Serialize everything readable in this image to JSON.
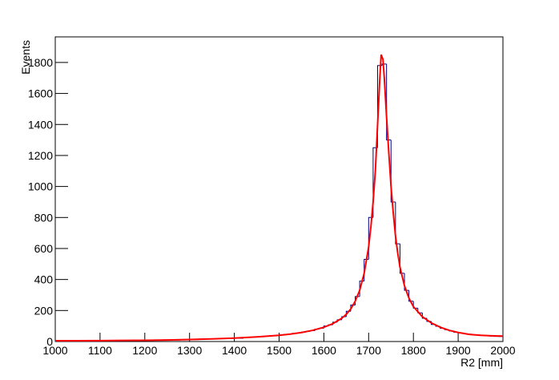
{
  "chart_data": {
    "type": "histogram",
    "xlabel": "R2 [mm]",
    "ylabel": "Events",
    "bins": [
      1000,
      1010,
      1020,
      1030,
      1040,
      1050,
      1060,
      1070,
      1080,
      1090,
      1100,
      1110,
      1120,
      1130,
      1140,
      1150,
      1160,
      1170,
      1180,
      1190,
      1200,
      1210,
      1220,
      1230,
      1240,
      1250,
      1260,
      1270,
      1280,
      1290,
      1300,
      1310,
      1320,
      1330,
      1340,
      1350,
      1360,
      1370,
      1380,
      1390,
      1400,
      1410,
      1420,
      1430,
      1440,
      1450,
      1460,
      1470,
      1480,
      1490,
      1500,
      1510,
      1520,
      1530,
      1540,
      1550,
      1560,
      1570,
      1580,
      1590,
      1600,
      1610,
      1620,
      1630,
      1640,
      1650,
      1660,
      1670,
      1680,
      1690,
      1700,
      1710,
      1720,
      1730,
      1740,
      1750,
      1760,
      1770,
      1780,
      1790,
      1800,
      1810,
      1820,
      1830,
      1840,
      1850,
      1860,
      1870,
      1880,
      1890,
      1900,
      1910,
      1920,
      1930,
      1940,
      1950,
      1960,
      1970,
      1980,
      1990,
      2000
    ],
    "values": [
      4,
      6,
      3,
      5,
      7,
      4,
      6,
      5,
      3,
      6,
      5,
      7,
      6,
      4,
      8,
      6,
      7,
      9,
      6,
      8,
      9,
      7,
      10,
      8,
      11,
      9,
      12,
      10,
      13,
      12,
      14,
      12,
      16,
      15,
      17,
      16,
      19,
      18,
      21,
      20,
      23,
      21,
      26,
      27,
      29,
      31,
      33,
      35,
      39,
      38,
      43,
      46,
      47,
      53,
      55,
      61,
      66,
      70,
      80,
      86,
      100,
      108,
      125,
      140,
      160,
      195,
      235,
      290,
      390,
      530,
      800,
      1250,
      1780,
      1790,
      1300,
      900,
      630,
      440,
      330,
      260,
      215,
      185,
      150,
      130,
      110,
      98,
      85,
      76,
      68,
      60,
      57,
      52,
      48,
      44,
      42,
      39,
      37,
      35,
      33,
      32
    ],
    "color": "#000080",
    "fit": {
      "color": "#ff0000",
      "x": [
        1000,
        1050,
        1100,
        1150,
        1200,
        1250,
        1300,
        1350,
        1400,
        1450,
        1500,
        1525,
        1550,
        1575,
        1600,
        1620,
        1640,
        1650,
        1660,
        1670,
        1680,
        1690,
        1700,
        1705,
        1710,
        1715,
        1720,
        1725,
        1728,
        1732,
        1735,
        1740,
        1745,
        1750,
        1755,
        1760,
        1765,
        1770,
        1780,
        1790,
        1800,
        1820,
        1840,
        1860,
        1880,
        1900,
        1925,
        1950,
        1975,
        2000
      ],
      "values": [
        5,
        5,
        6,
        7,
        8,
        10,
        13,
        17,
        22,
        30,
        40,
        48,
        58,
        72,
        92,
        115,
        150,
        175,
        210,
        260,
        330,
        440,
        610,
        740,
        900,
        1100,
        1400,
        1700,
        1850,
        1820,
        1700,
        1450,
        1220,
        1000,
        830,
        680,
        570,
        480,
        360,
        280,
        225,
        160,
        120,
        92,
        72,
        58,
        46,
        40,
        37,
        35
      ]
    },
    "xlim": [
      1000,
      2000
    ],
    "xticks": [
      1000,
      1100,
      1200,
      1300,
      1400,
      1500,
      1600,
      1700,
      1800,
      1900,
      2000
    ],
    "ylim": [
      0,
      1965
    ],
    "yticks": [
      0,
      200,
      400,
      600,
      800,
      1000,
      1200,
      1400,
      1600,
      1800
    ]
  }
}
